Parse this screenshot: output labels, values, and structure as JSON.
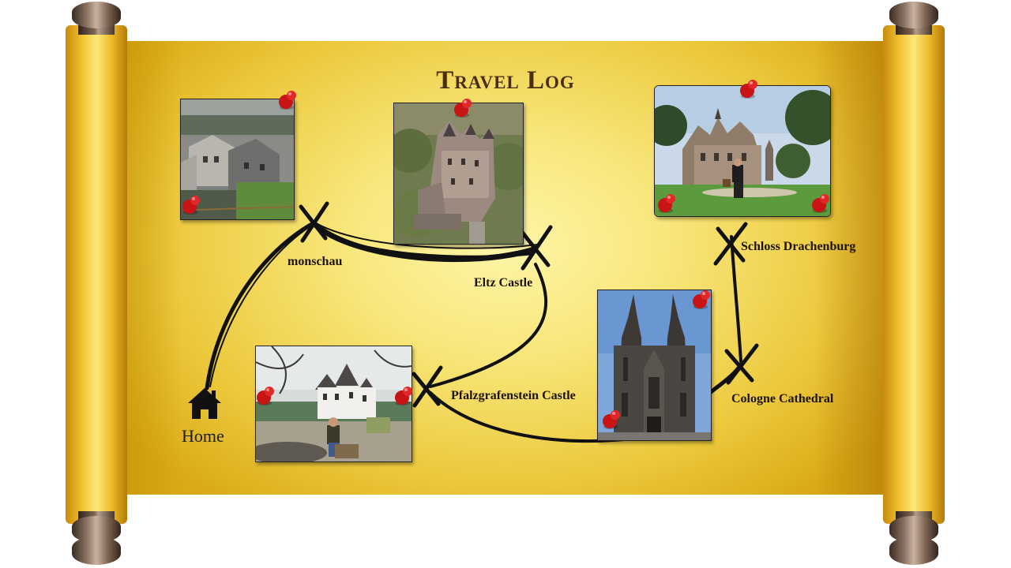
{
  "title": "Travel Log",
  "home": {
    "label": "Home",
    "icon": "house-icon"
  },
  "locations": [
    {
      "id": "monschau",
      "label": "monschau"
    },
    {
      "id": "eltz",
      "label": "Eltz Castle"
    },
    {
      "id": "pfalzgrafenstein",
      "label": "Pfalzgrafenstein Castle"
    },
    {
      "id": "cologne",
      "label": "Cologne Cathedral"
    },
    {
      "id": "drachenburg",
      "label": "Schloss Drachenburg"
    }
  ],
  "colors": {
    "parchment_light": "#fdf6a8",
    "parchment_dark": "#d9a916",
    "title": "#4a2e14",
    "path": "#111111",
    "pin": "#d81e1e"
  }
}
